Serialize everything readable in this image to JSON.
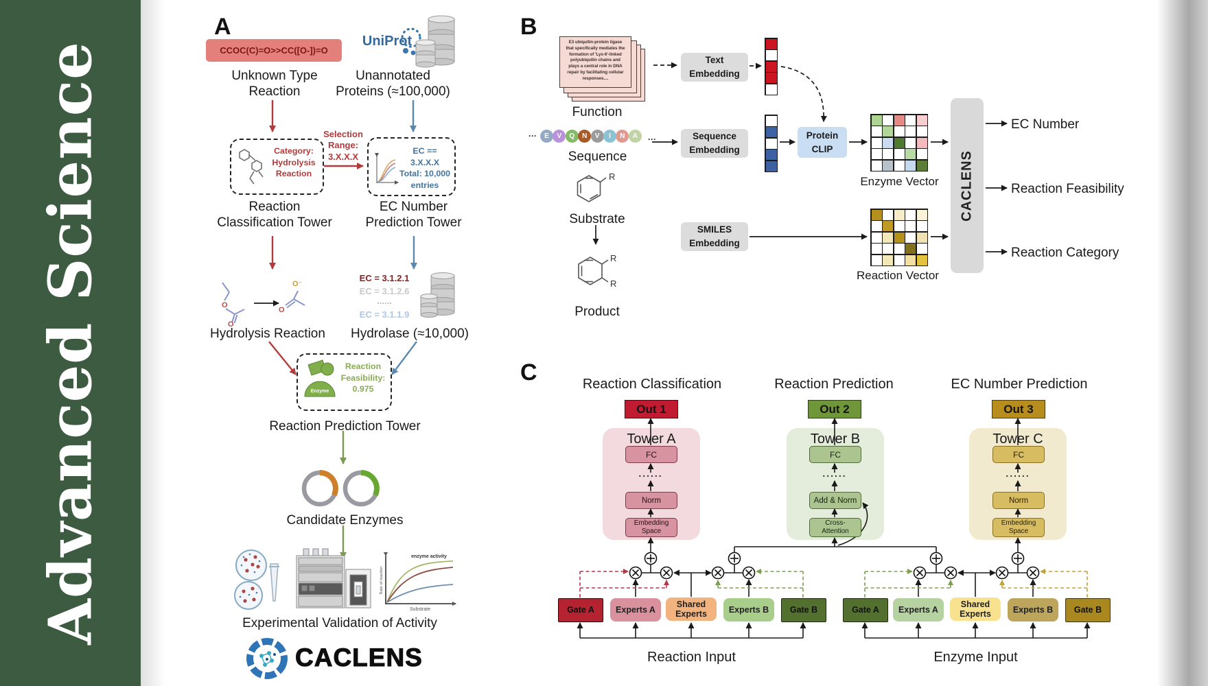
{
  "banner": {
    "title": "Advanced Science"
  },
  "colors": {
    "banner_green": "#3c5b40",
    "red_accent": "#b23a3a",
    "blue_accent": "#5b88ae",
    "green_accent": "#7a9a50",
    "out1_red": "#c01b31",
    "out2_green": "#6f9739",
    "out3_gold": "#b78e1d"
  },
  "panelA": {
    "label": "A",
    "smiles": "CCOC(C)=O>>CC([O-])=O",
    "uniprot": "UniProt",
    "unknown_reaction": "Unknown Type\nReaction",
    "unannotated": "Unannotated\nProteins (≈100,000)",
    "selection": "Selection\nRange:\n3.X.X.X",
    "category_box": "Category:\nHydrolysis\nReaction",
    "ec_box": "EC == 3.X.X.X\nTotal: 10,000\nentries",
    "classification_tower": "Reaction\nClassification Tower",
    "prediction_tower": "EC Number\nPrediction Tower",
    "ec_list": [
      {
        "text": "EC = 3.1.2.1",
        "color": "#8b1f1f"
      },
      {
        "text": "EC = 3.1.2.6",
        "color": "#c9c9c9"
      },
      {
        "text": "......",
        "color": "#bbbbbb"
      },
      {
        "text": "EC = 3.1.1.9",
        "color": "#aec7e2"
      }
    ],
    "hydrolysis": "Hydrolysis Reaction",
    "hydrolase": "Hydrolase (≈10,000)",
    "enzyme_icon_label": "Enzyme",
    "feasibility": "Reaction\nFeasibility:\n0.975",
    "reaction_tower": "Reaction Prediction Tower",
    "candidate": "Candidate Enzymes",
    "graph": {
      "curve_label": "enzyme activity",
      "ylabel": "Rate of reaction",
      "xlabel": "Substrate"
    },
    "validation": "Experimental Validation of Activity",
    "brand": "CACLENS",
    "atoms": {
      "o1": "O",
      "o2": "O",
      "o3": "O",
      "ominus": "O⁻"
    }
  },
  "panelB": {
    "label": "B",
    "function_card": "E3 ubiquitin-protein ligase\nthat specifically mediates the\nformation of 'Lys-6'-linked\npolyubiquitin chains and\nplays a central role in DNA\nrepair by facilitating cellular\nresponses....",
    "function_label": "Function",
    "ellipsis": "···",
    "sequence": [
      {
        "t": "E",
        "c": "#92aac6"
      },
      {
        "t": "V",
        "c": "#b992dc"
      },
      {
        "t": "Q",
        "c": "#83bb66"
      },
      {
        "t": "N",
        "c": "#a85a28"
      },
      {
        "t": "V",
        "c": "#9b9b9b"
      },
      {
        "t": "I",
        "c": "#8ac4d4"
      },
      {
        "t": "N",
        "c": "#e09a90"
      },
      {
        "t": "A",
        "c": "#bfd3a4"
      }
    ],
    "sequence_label": "Sequence",
    "substrate_label": "Substrate",
    "product_label": "Product",
    "r_label": "R",
    "text_embedding": "Text\nEmbedding",
    "sequence_embedding": "Sequence\nEmbedding",
    "smiles_embedding": "SMILES\nEmbedding",
    "protein_clip": "Protein\nCLIP",
    "text_vector": [
      "#cc1520",
      "#ffffff",
      "#cc1520",
      "#cc1520",
      "#ffffff"
    ],
    "seq_vector": [
      "#ffffff",
      "#3c62a4",
      "#ffffff",
      "#3c62a4",
      "#3c62a4"
    ],
    "enzyme_matrix": [
      [
        "#aed491",
        "#ffffff",
        "#e58b87",
        "#ffffff",
        "#f6cdd0"
      ],
      [
        "#ffffff",
        "#b3d79a",
        "#ffffff",
        "#ffffff",
        "#ffffff"
      ],
      [
        "#ffffff",
        "#ccdcf0",
        "#4e7930",
        "#ffffff",
        "#f3b9bd"
      ],
      [
        "#ffffff",
        "#ffffff",
        "#ffffff",
        "#b8dba4",
        "#ffffff"
      ],
      [
        "#ffffff",
        "#b7c3cb",
        "#ffffff",
        "#c5d9ef",
        "#5d7c36"
      ]
    ],
    "reaction_matrix": [
      [
        "#b6901d",
        "#ffffff",
        "#f6edc6",
        "#ffffff",
        "#faf3d8"
      ],
      [
        "#ffffff",
        "#bf9b25",
        "#ffffff",
        "#ffffff",
        "#ffffff"
      ],
      [
        "#ffffff",
        "#f3e8b8",
        "#b6901d",
        "#ffffff",
        "#efe3b4"
      ],
      [
        "#ffffff",
        "#ffffff",
        "#ffffff",
        "#83701a",
        "#ffffff"
      ],
      [
        "#ffffff",
        "#f3e8b8",
        "#ffffff",
        "#f3dfa0",
        "#e3c23e"
      ]
    ],
    "enzyme_vector_label": "Enzyme Vector",
    "reaction_vector_label": "Reaction Vector",
    "caclens": "CACLENS",
    "outputs": [
      "EC Number",
      "Reaction Feasibility",
      "Reaction Category"
    ]
  },
  "panelC": {
    "label": "C",
    "headers": [
      "Reaction Classification",
      "Reaction Prediction",
      "EC Number Prediction"
    ],
    "outs": [
      "Out 1",
      "Out 2",
      "Out 3"
    ],
    "towers": [
      {
        "name": "Tower A",
        "fc": "FC",
        "dots": "......",
        "mid": "Norm",
        "bottom": "Embedding\nSpace"
      },
      {
        "name": "Tower B",
        "fc": "FC",
        "dots": "......",
        "mid": "Add & Norm",
        "bottom": "Cross-\nAttention"
      },
      {
        "name": "Tower C",
        "fc": "FC",
        "dots": "......",
        "mid": "Norm",
        "bottom": "Embedding\nSpace"
      }
    ],
    "moe1": {
      "gate_a": "Gate A",
      "experts_a": "Experts A",
      "shared": "Shared\nExperts",
      "experts_b": "Experts B",
      "gate_b": "Gate B",
      "input": "Reaction Input"
    },
    "moe2": {
      "gate_a": "Gate A",
      "experts_a": "Experts A",
      "shared": "Shared\nExperts",
      "experts_b": "Experts B",
      "gate_b": "Gate B",
      "input": "Enzyme Input"
    }
  }
}
